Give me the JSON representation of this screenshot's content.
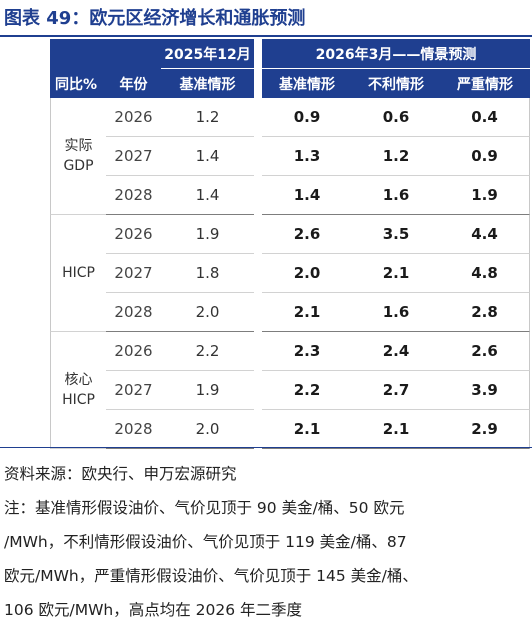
{
  "title": "图表 49：欧元区经济增长和通胀预测",
  "table": {
    "header_top": {
      "group_dec": "2025年12月",
      "group_mar": "2026年3月——情景预测"
    },
    "header_cols": [
      "同比%",
      "年份",
      "基准情形",
      "基准情形",
      "不利情形",
      "严重情形"
    ],
    "groups": [
      {
        "label": "实际GDP",
        "label_line1": "实际",
        "label_line2": "GDP",
        "rows": [
          {
            "year": "2026",
            "dec_baseline": "1.2",
            "mar_baseline": "0.9",
            "mar_adverse": "0.6",
            "mar_severe": "0.4"
          },
          {
            "year": "2027",
            "dec_baseline": "1.4",
            "mar_baseline": "1.3",
            "mar_adverse": "1.2",
            "mar_severe": "0.9"
          },
          {
            "year": "2028",
            "dec_baseline": "1.4",
            "mar_baseline": "1.4",
            "mar_adverse": "1.6",
            "mar_severe": "1.9"
          }
        ]
      },
      {
        "label": "HICP",
        "label_line1": "HICP",
        "label_line2": "",
        "rows": [
          {
            "year": "2026",
            "dec_baseline": "1.9",
            "mar_baseline": "2.6",
            "mar_adverse": "3.5",
            "mar_severe": "4.4"
          },
          {
            "year": "2027",
            "dec_baseline": "1.8",
            "mar_baseline": "2.0",
            "mar_adverse": "2.1",
            "mar_severe": "4.8"
          },
          {
            "year": "2028",
            "dec_baseline": "2.0",
            "mar_baseline": "2.1",
            "mar_adverse": "1.6",
            "mar_severe": "2.8"
          }
        ]
      },
      {
        "label": "核心HICP",
        "label_line1": "核心",
        "label_line2": "HICP",
        "rows": [
          {
            "year": "2026",
            "dec_baseline": "2.2",
            "mar_baseline": "2.3",
            "mar_adverse": "2.4",
            "mar_severe": "2.6"
          },
          {
            "year": "2027",
            "dec_baseline": "1.9",
            "mar_baseline": "2.2",
            "mar_adverse": "2.7",
            "mar_severe": "3.9"
          },
          {
            "year": "2028",
            "dec_baseline": "2.0",
            "mar_baseline": "2.1",
            "mar_adverse": "2.1",
            "mar_severe": "2.9"
          }
        ]
      }
    ]
  },
  "source": "资料来源：欧央行、申万宏源研究",
  "note_lines": [
    "注：基准情形假设油价、气价见顶于 90 美金/桶、50 欧元",
    "/MWh，不利情形假设油价、气价见顶于 119 美金/桶、87",
    "欧元/MWh，严重情形假设油价、气价见顶于 145 美金/桶、",
    "106 欧元/MWh，高点均在 2026 年二季度"
  ],
  "colors": {
    "accent": "#1f3f90",
    "header_text": "#ffffff"
  }
}
